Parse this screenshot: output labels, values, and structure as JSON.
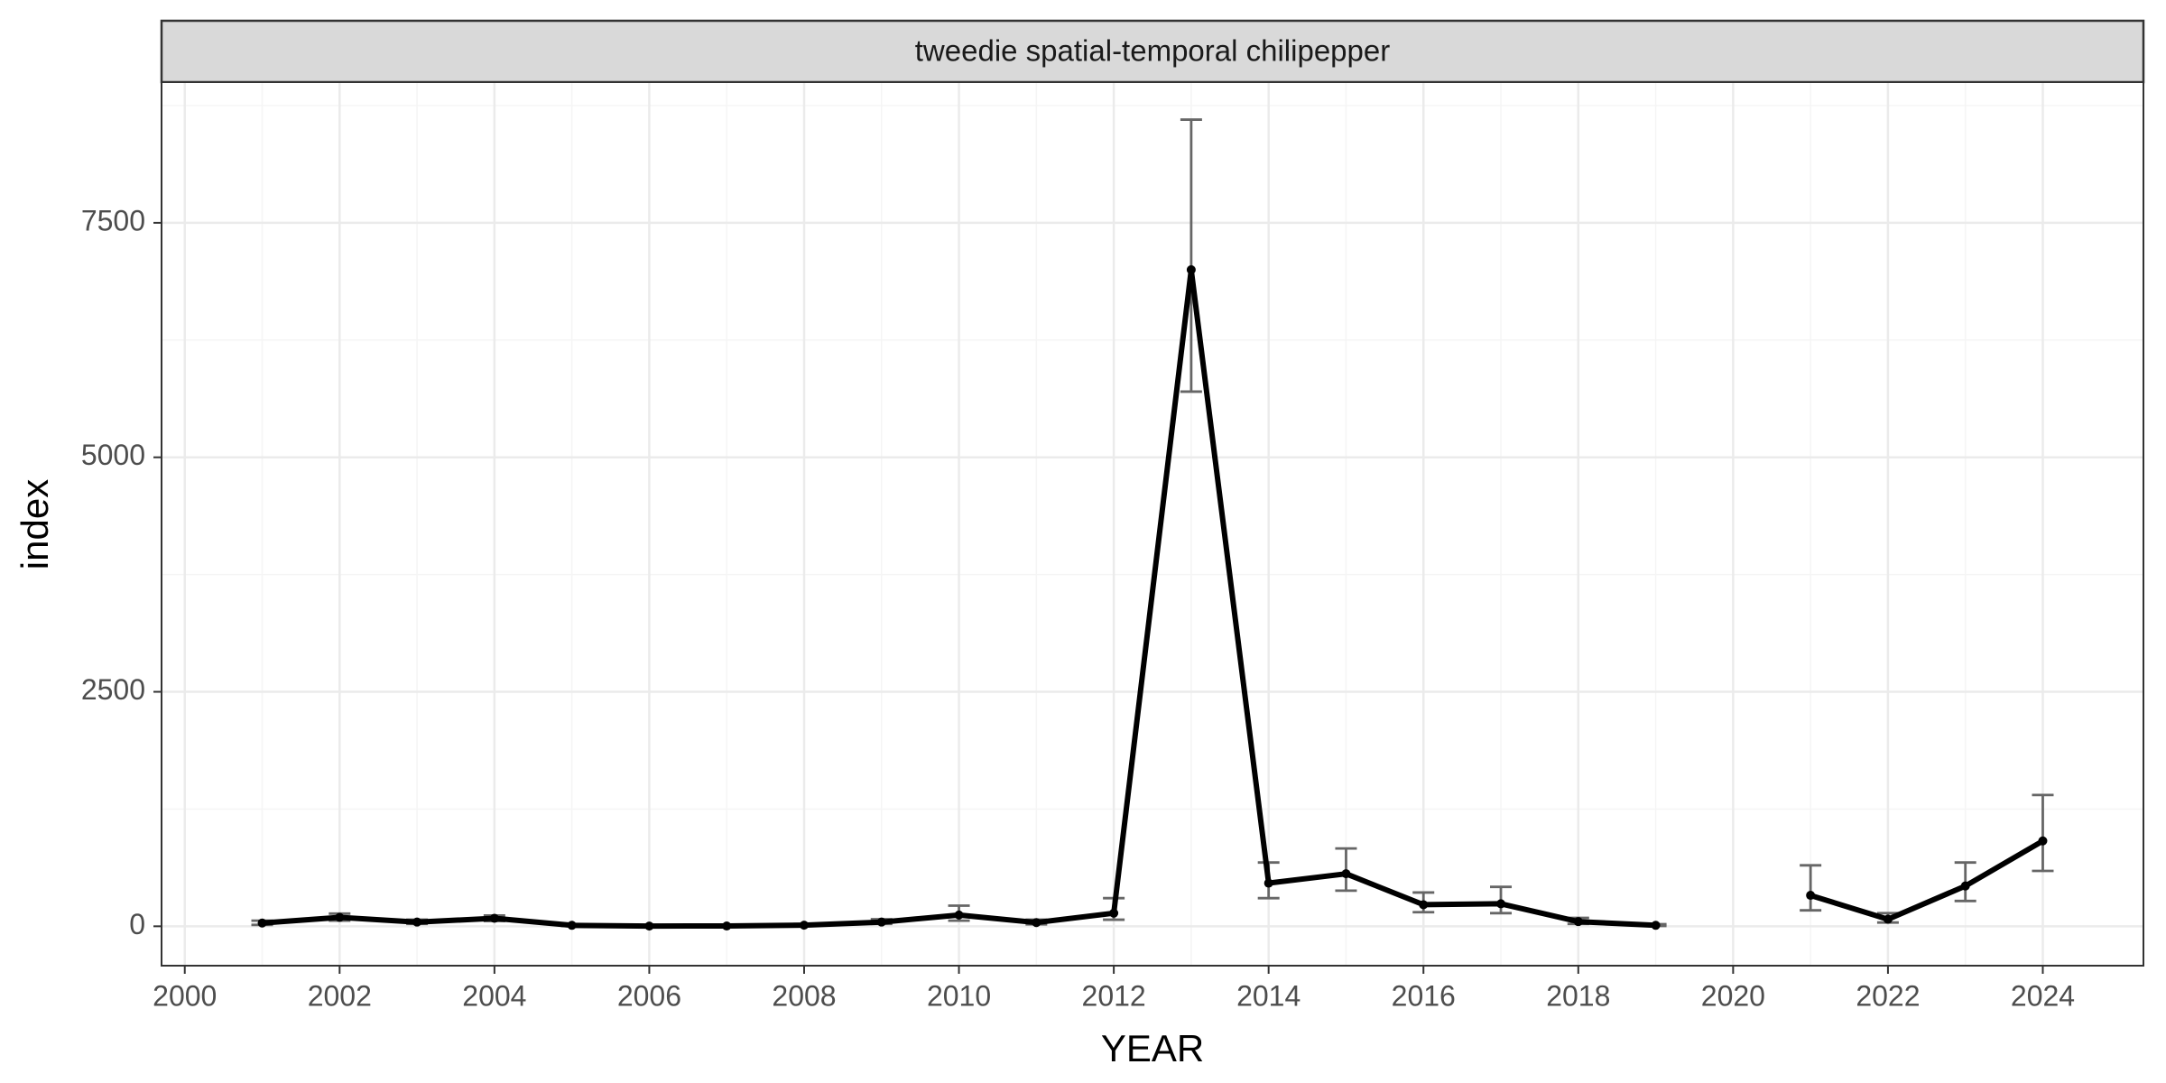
{
  "chart_data": {
    "type": "line",
    "panel_title": "tweedie spatial-temporal chilipepper",
    "xlabel": "YEAR",
    "ylabel": "index",
    "xlim": [
      1999.7,
      2025.3
    ],
    "ylim": [
      -420,
      9000
    ],
    "x_ticks": [
      2000,
      2002,
      2004,
      2006,
      2008,
      2010,
      2012,
      2014,
      2016,
      2018,
      2020,
      2022,
      2024
    ],
    "y_ticks": [
      0,
      2500,
      5000,
      7500
    ],
    "y_minor": [
      1250,
      3750,
      6250,
      8750
    ],
    "grid": true,
    "series": [
      {
        "segments": [
          [
            {
              "x": 2001,
              "y": 35,
              "lo": 15,
              "hi": 60
            },
            {
              "x": 2002,
              "y": 95,
              "lo": 60,
              "hi": 135
            },
            {
              "x": 2003,
              "y": 45,
              "lo": 25,
              "hi": 70
            },
            {
              "x": 2004,
              "y": 85,
              "lo": 55,
              "hi": 115
            },
            {
              "x": 2005,
              "y": 10,
              "lo": 4,
              "hi": 20
            },
            {
              "x": 2006,
              "y": 2,
              "lo": 0,
              "hi": 6
            },
            {
              "x": 2007,
              "y": 3,
              "lo": 1,
              "hi": 8
            },
            {
              "x": 2008,
              "y": 12,
              "lo": 5,
              "hi": 25
            },
            {
              "x": 2009,
              "y": 45,
              "lo": 25,
              "hi": 75
            },
            {
              "x": 2010,
              "y": 120,
              "lo": 60,
              "hi": 220
            },
            {
              "x": 2011,
              "y": 40,
              "lo": 20,
              "hi": 70
            },
            {
              "x": 2012,
              "y": 140,
              "lo": 70,
              "hi": 300
            },
            {
              "x": 2013,
              "y": 7000,
              "lo": 5700,
              "hi": 8600
            },
            {
              "x": 2014,
              "y": 460,
              "lo": 300,
              "hi": 680
            },
            {
              "x": 2015,
              "y": 560,
              "lo": 380,
              "hi": 830
            },
            {
              "x": 2016,
              "y": 230,
              "lo": 150,
              "hi": 360
            },
            {
              "x": 2017,
              "y": 240,
              "lo": 140,
              "hi": 420
            },
            {
              "x": 2018,
              "y": 50,
              "lo": 25,
              "hi": 90
            },
            {
              "x": 2019,
              "y": 10,
              "lo": 4,
              "hi": 22
            }
          ],
          [
            {
              "x": 2021,
              "y": 330,
              "lo": 170,
              "hi": 650
            },
            {
              "x": 2022,
              "y": 75,
              "lo": 40,
              "hi": 140
            },
            {
              "x": 2023,
              "y": 430,
              "lo": 270,
              "hi": 680
            },
            {
              "x": 2024,
              "y": 910,
              "lo": 590,
              "hi": 1400
            }
          ]
        ]
      }
    ],
    "colors": {
      "line": "#000000",
      "errorbar": "#666666",
      "strip_fill": "#d9d9d9",
      "strip_border": "#333333",
      "panel_border": "#333333",
      "grid_major": "#ebebeb",
      "grid_minor": "#f5f5f5",
      "tick_text": "#4d4d4d"
    }
  }
}
